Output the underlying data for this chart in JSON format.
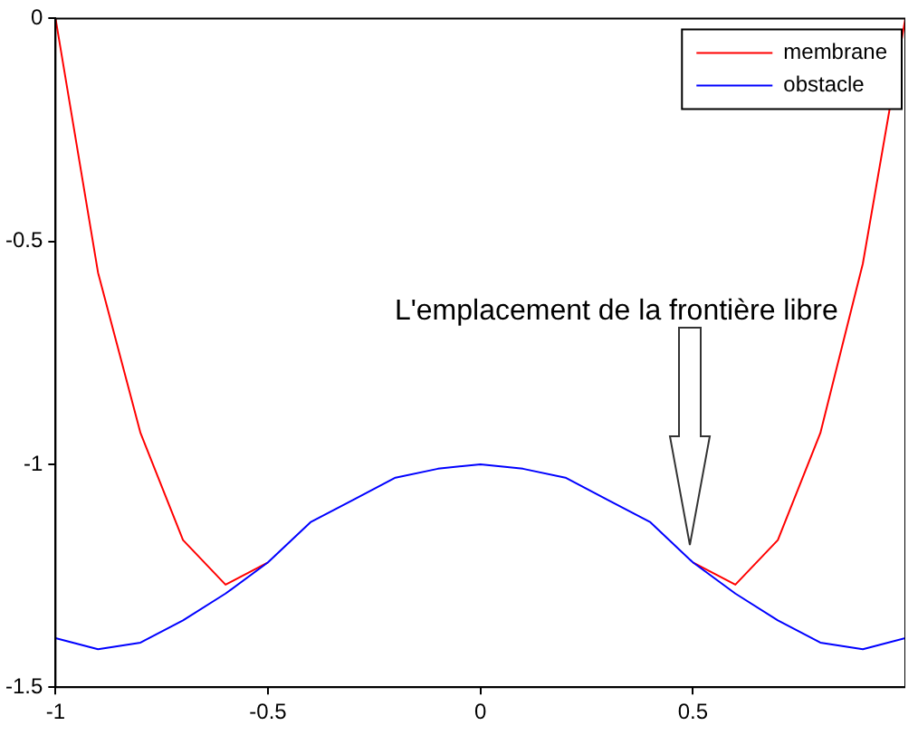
{
  "chart_data": {
    "type": "line",
    "x": [
      -1,
      -0.9,
      -0.8,
      -0.7,
      -0.6,
      -0.5,
      -0.4,
      -0.3,
      -0.2,
      -0.1,
      0,
      0.1,
      0.2,
      0.3,
      0.4,
      0.5,
      0.6,
      0.7,
      0.8,
      0.9,
      1
    ],
    "series": [
      {
        "name": "membrane",
        "color": "#ff0000",
        "values": [
          0,
          -0.57,
          -0.93,
          -1.17,
          -1.27,
          -1.22,
          null,
          null,
          null,
          null,
          null,
          null,
          null,
          null,
          null,
          -1.22,
          -1.27,
          -1.17,
          -0.93,
          -0.55,
          0
        ]
      },
      {
        "name": "obstacle",
        "color": "#0000ff",
        "values": [
          -1.39,
          -1.415,
          -1.4,
          -1.35,
          -1.29,
          -1.22,
          -1.13,
          -1.08,
          -1.03,
          -1.01,
          -1.0,
          -1.01,
          -1.03,
          -1.08,
          -1.13,
          -1.22,
          -1.29,
          -1.35,
          -1.4,
          -1.415,
          -1.39
        ]
      }
    ],
    "xlim": [
      -1,
      1
    ],
    "xticks": [
      -1,
      -0.5,
      0,
      0.5
    ],
    "ylim": [
      -1.5,
      0
    ],
    "yticks": [
      -1.5,
      -1,
      -0.5,
      0
    ],
    "legend": "top right",
    "marker": "none",
    "line_style": "solid",
    "annotations": [
      "L'emplacement de la frontière libre"
    ]
  }
}
